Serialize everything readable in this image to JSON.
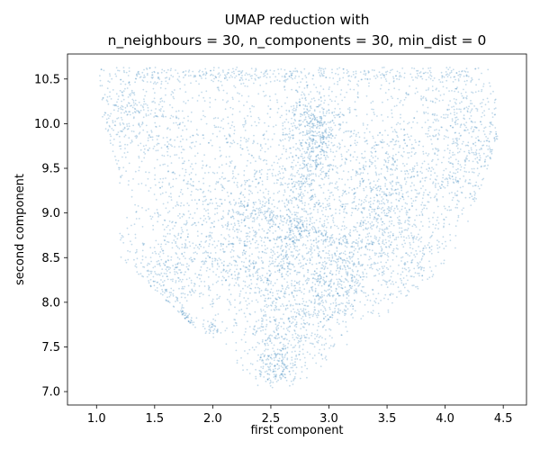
{
  "chart_data": {
    "type": "scatter",
    "title_lines": [
      "UMAP reduction with",
      "n_neighbours = 30, n_components = 30, min_dist = 0"
    ],
    "xlabel": "first component",
    "ylabel": "second component",
    "xlim": [
      0.75,
      4.7
    ],
    "ylim": [
      6.85,
      10.78
    ],
    "xticks": [
      1.0,
      1.5,
      2.0,
      2.5,
      3.0,
      3.5,
      4.0,
      4.5
    ],
    "yticks": [
      7.0,
      7.5,
      8.0,
      8.5,
      9.0,
      9.5,
      10.0,
      10.5
    ],
    "xtick_labels": [
      "1.0",
      "1.5",
      "2.0",
      "2.5",
      "3.0",
      "3.5",
      "4.0",
      "4.5"
    ],
    "ytick_labels": [
      "7.0",
      "7.5",
      "8.0",
      "8.5",
      "9.0",
      "9.5",
      "10.0",
      "10.5"
    ],
    "grid": false,
    "point_color": "#1f77b4",
    "point_alpha": 0.12,
    "density_regions": [
      {
        "kind": "band",
        "x0": 1.3,
        "x1": 4.2,
        "y": 10.55,
        "sx": 0.04,
        "sy": 0.05,
        "weight": 0.06
      },
      {
        "kind": "blob",
        "cx": 2.7,
        "cy": 9.9,
        "sx": 0.9,
        "sy": 0.45,
        "weight": 0.13
      },
      {
        "kind": "blob",
        "cx": 1.3,
        "cy": 10.1,
        "sx": 0.25,
        "sy": 0.35,
        "weight": 0.05
      },
      {
        "kind": "blob",
        "cx": 4.1,
        "cy": 10.2,
        "sx": 0.25,
        "sy": 0.3,
        "weight": 0.04
      },
      {
        "kind": "blob",
        "cx": 2.6,
        "cy": 9.1,
        "sx": 0.75,
        "sy": 0.45,
        "weight": 0.16
      },
      {
        "kind": "blob",
        "cx": 2.7,
        "cy": 8.4,
        "sx": 0.5,
        "sy": 0.45,
        "weight": 0.12
      },
      {
        "kind": "blob",
        "cx": 2.7,
        "cy": 7.7,
        "sx": 0.25,
        "sy": 0.3,
        "weight": 0.06
      },
      {
        "kind": "blob",
        "cx": 2.55,
        "cy": 7.3,
        "sx": 0.1,
        "sy": 0.12,
        "weight": 0.03
      },
      {
        "kind": "blob",
        "cx": 2.85,
        "cy": 10.0,
        "sx": 0.12,
        "sy": 0.2,
        "weight": 0.04
      },
      {
        "kind": "blob",
        "cx": 3.05,
        "cy": 8.2,
        "sx": 0.15,
        "sy": 0.2,
        "weight": 0.04
      },
      {
        "kind": "band",
        "x0": 2.95,
        "x1": 2.6,
        "y0": 10.1,
        "y1": 8.3,
        "sx": 0.07,
        "sy": 0.07,
        "weight": 0.05
      },
      {
        "kind": "band",
        "x0": 2.2,
        "x1": 3.3,
        "y0": 9.1,
        "y1": 8.6,
        "sx": 0.06,
        "sy": 0.06,
        "weight": 0.03
      },
      {
        "kind": "blob",
        "cx": 3.6,
        "cy": 9.3,
        "sx": 0.3,
        "sy": 0.35,
        "weight": 0.05
      },
      {
        "kind": "blob",
        "cx": 4.2,
        "cy": 9.5,
        "sx": 0.2,
        "sy": 0.3,
        "weight": 0.03
      },
      {
        "kind": "blob",
        "cx": 1.5,
        "cy": 8.2,
        "sx": 0.15,
        "sy": 0.3,
        "weight": 0.03
      },
      {
        "kind": "blob",
        "cx": 1.65,
        "cy": 7.75,
        "sx": 0.06,
        "sy": 0.07,
        "weight": 0.01
      },
      {
        "kind": "blob",
        "cx": 2.0,
        "cy": 7.7,
        "sx": 0.04,
        "sy": 0.04,
        "weight": 0.005
      },
      {
        "kind": "blob",
        "cx": 3.7,
        "cy": 8.3,
        "sx": 0.2,
        "sy": 0.25,
        "weight": 0.02
      },
      {
        "kind": "blob",
        "cx": 2.0,
        "cy": 8.5,
        "sx": 0.3,
        "sy": 0.35,
        "weight": 0.05
      },
      {
        "kind": "blob",
        "cx": 3.5,
        "cy": 8.8,
        "sx": 0.25,
        "sy": 0.3,
        "weight": 0.04
      },
      {
        "kind": "blob",
        "cx": 4.45,
        "cy": 9.75,
        "sx": 0.08,
        "sy": 0.1,
        "weight": 0.005
      }
    ]
  }
}
